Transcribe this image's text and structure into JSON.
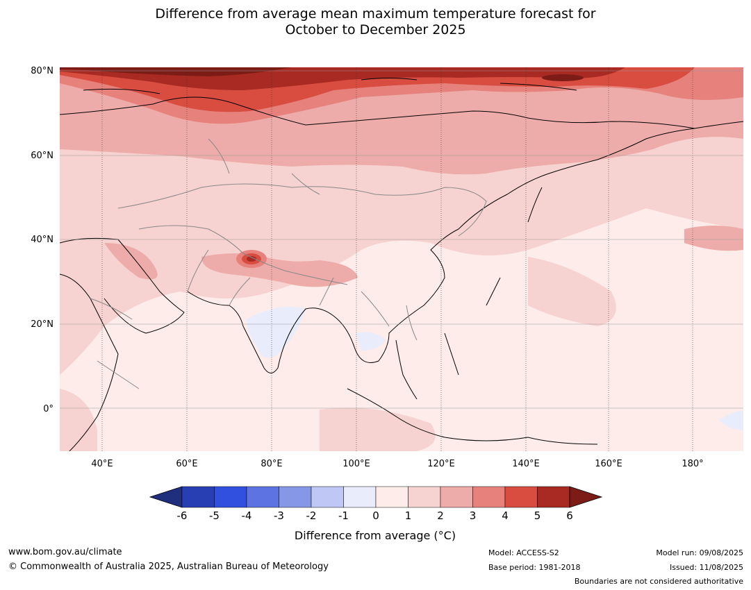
{
  "title": {
    "line1": "Difference from average mean maximum temperature forecast for",
    "line2": "October to December 2025"
  },
  "map": {
    "lon_labels": [
      "40°E",
      "60°E",
      "80°E",
      "100°E",
      "120°E",
      "140°E",
      "160°E",
      "180°"
    ],
    "lat_labels": [
      "80°N",
      "60°N",
      "40°N",
      "20°N",
      "0°"
    ]
  },
  "colorbar": {
    "ticks": [
      "-6",
      "-5",
      "-4",
      "-3",
      "-2",
      "-1",
      "0",
      "1",
      "2",
      "3",
      "4",
      "5",
      "6"
    ],
    "label": "Difference from average (°C)",
    "colors": [
      "#1f2f7e",
      "#283fb4",
      "#3150e0",
      "#5d73e2",
      "#8797e8",
      "#bfc8f4",
      "#e8ecfb",
      "#fdecea",
      "#f6d2d0",
      "#edaca9",
      "#e6817c",
      "#d94c40",
      "#a82a22",
      "#7d1c17"
    ]
  },
  "footer": {
    "url": "www.bom.gov.au/climate",
    "copyright": "© Commonwealth of Australia 2025, Australian Bureau of Meteorology",
    "model": "Model: ACCESS-S2",
    "base_period": "Base period: 1981-2018",
    "model_run": "Model run: 09/08/2025",
    "issued": "Issued: 11/08/2025",
    "disclaimer": "Boundaries are not considered authoritative"
  }
}
